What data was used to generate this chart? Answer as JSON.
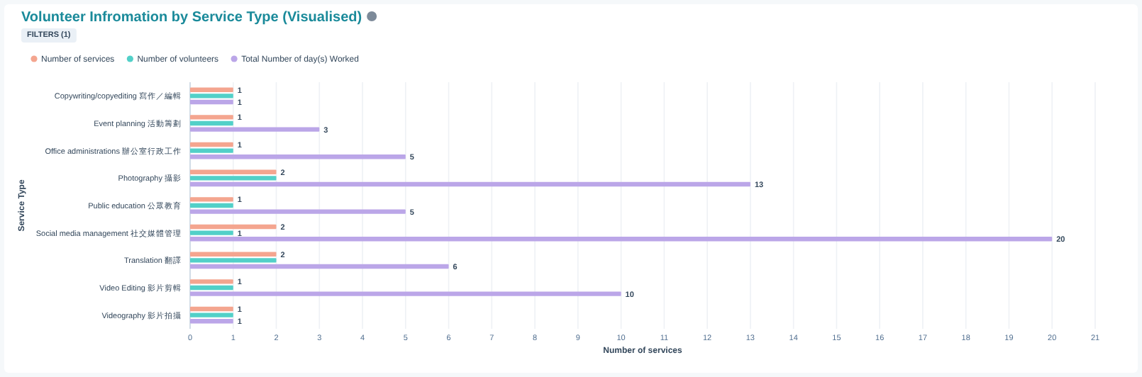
{
  "chart_data": {
    "type": "bar",
    "orientation": "horizontal",
    "title": "Volunteer Infromation by Service Type (Visualised)",
    "annotations": [
      "FILTERS (1)"
    ],
    "xlabel": "Number of services",
    "ylabel": "Service Type",
    "categories": [
      "Copywriting/copyediting 寫作／編輯",
      "Event planning 活動籌劃",
      "Office administrations 辦公室行政工作",
      "Photography 攝影",
      "Public education 公眾教育",
      "Social media management 社交媒體管理",
      "Translation 翻譯",
      "Video Editing 影片剪輯",
      "Videography 影片拍攝"
    ],
    "series": [
      {
        "name": "Number of services",
        "color": "#f4a58f",
        "values": [
          1,
          1,
          1,
          2,
          1,
          2,
          2,
          1,
          1
        ],
        "value_labels": [
          "1",
          "1",
          "1",
          "2",
          "1",
          "2",
          "2",
          "1",
          "1"
        ]
      },
      {
        "name": "Number of volunteers",
        "color": "#52d0c8",
        "values": [
          1,
          1,
          1,
          2,
          1,
          1,
          2,
          1,
          1
        ],
        "value_labels": [
          null,
          null,
          null,
          null,
          null,
          "1",
          null,
          null,
          null
        ]
      },
      {
        "name": "Total Number of day(s) Worked",
        "color": "#bba6e8",
        "values": [
          1,
          3,
          5,
          13,
          5,
          20,
          6,
          10,
          1
        ],
        "value_labels": [
          "1",
          "3",
          "5",
          "13",
          "5",
          "20",
          "6",
          "10",
          "1"
        ]
      }
    ],
    "xlim": [
      0,
      21
    ],
    "xticks": [
      0,
      1,
      2,
      3,
      4,
      5,
      6,
      7,
      8,
      9,
      10,
      11,
      12,
      13,
      14,
      15,
      16,
      17,
      18,
      19,
      20,
      21
    ],
    "grid": "x",
    "legend": "top left"
  }
}
